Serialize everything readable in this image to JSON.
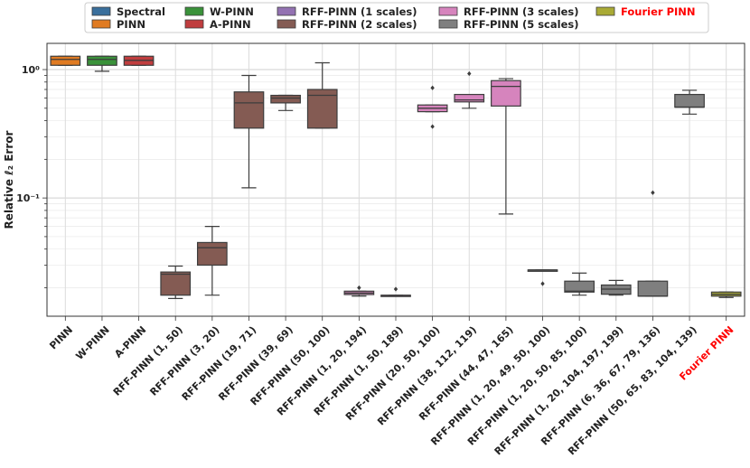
{
  "chart_data": {
    "type": "box",
    "title": "",
    "xlabel": "",
    "ylabel": "Relative ℓ₂ Error",
    "yscale": "log",
    "ylim": [
      0.012,
      1.6
    ],
    "y_ticks": [
      {
        "value": 1.0,
        "label": "10⁰"
      },
      {
        "value": 0.1,
        "label": "10⁻¹"
      }
    ],
    "grid": true,
    "legend_position": "top-center",
    "legend": [
      {
        "label": "Spectral",
        "color": "#3a6f9c"
      },
      {
        "label": "PINN",
        "color": "#e07b22"
      },
      {
        "label": "W-PINN",
        "color": "#3a923a"
      },
      {
        "label": "A-PINN",
        "color": "#c03d3e"
      },
      {
        "label": "RFF-PINN (1 scales)",
        "color": "#9372b2"
      },
      {
        "label": "RFF-PINN (2 scales)",
        "color": "#845b53"
      },
      {
        "label": "RFF-PINN (3 scales)",
        "color": "#d684bd"
      },
      {
        "label": "RFF-PINN (5 scales)",
        "color": "#7f7f7f"
      },
      {
        "label": "Fourier PINN",
        "color": "#a9aa35",
        "highlight": "#ff0000"
      }
    ],
    "boxes": [
      {
        "category": "PINN",
        "group": "PINN",
        "whislo": 1.08,
        "q1": 1.08,
        "med": 1.2,
        "q3": 1.27,
        "whishi": 1.27,
        "fliers": []
      },
      {
        "category": "W-PINN",
        "group": "W-PINN",
        "whislo": 0.97,
        "q1": 1.08,
        "med": 1.2,
        "q3": 1.27,
        "whishi": 1.27,
        "fliers": []
      },
      {
        "category": "A-PINN",
        "group": "A-PINN",
        "whislo": 1.08,
        "q1": 1.08,
        "med": 1.18,
        "q3": 1.27,
        "whishi": 1.27,
        "fliers": []
      },
      {
        "category": "RFF-PINN (1, 50)",
        "group": "RFF-PINN (2 scales)",
        "whislo": 0.0165,
        "q1": 0.0175,
        "med": 0.0255,
        "q3": 0.0265,
        "whishi": 0.0295,
        "fliers": []
      },
      {
        "category": "RFF-PINN (3, 20)",
        "group": "RFF-PINN (2 scales)",
        "whislo": 0.0175,
        "q1": 0.03,
        "med": 0.041,
        "q3": 0.045,
        "whishi": 0.06,
        "fliers": []
      },
      {
        "category": "RFF-PINN (19, 71)",
        "group": "RFF-PINN (2 scales)",
        "whislo": 0.12,
        "q1": 0.35,
        "med": 0.55,
        "q3": 0.67,
        "whishi": 0.9,
        "fliers": []
      },
      {
        "category": "RFF-PINN (39, 69)",
        "group": "RFF-PINN (2 scales)",
        "whislo": 0.48,
        "q1": 0.55,
        "med": 0.6,
        "q3": 0.63,
        "whishi": 0.63,
        "fliers": []
      },
      {
        "category": "RFF-PINN (50, 100)",
        "group": "RFF-PINN (2 scales)",
        "whislo": 0.35,
        "q1": 0.35,
        "med": 0.63,
        "q3": 0.7,
        "whishi": 1.13,
        "fliers": []
      },
      {
        "category": "RFF-PINN (1, 20, 194)",
        "group": "RFF-PINN (3 scales)",
        "whislo": 0.0172,
        "q1": 0.0177,
        "med": 0.0182,
        "q3": 0.0188,
        "whishi": 0.0188,
        "fliers": [
          0.02
        ]
      },
      {
        "category": "RFF-PINN (1, 50, 189)",
        "group": "RFF-PINN (3 scales)",
        "whislo": 0.0172,
        "q1": 0.0172,
        "med": 0.0174,
        "q3": 0.0175,
        "whishi": 0.0175,
        "fliers": [
          0.0195
        ]
      },
      {
        "category": "RFF-PINN (20, 50, 100)",
        "group": "RFF-PINN (3 scales)",
        "whislo": 0.47,
        "q1": 0.47,
        "med": 0.5,
        "q3": 0.53,
        "whishi": 0.53,
        "fliers": [
          0.72,
          0.36
        ]
      },
      {
        "category": "RFF-PINN (38, 112, 119)",
        "group": "RFF-PINN (3 scales)",
        "whislo": 0.5,
        "q1": 0.56,
        "med": 0.58,
        "q3": 0.64,
        "whishi": 0.64,
        "fliers": [
          0.93
        ]
      },
      {
        "category": "RFF-PINN (44, 47, 165)",
        "group": "RFF-PINN (3 scales)",
        "whislo": 0.075,
        "q1": 0.52,
        "med": 0.74,
        "q3": 0.82,
        "whishi": 0.85,
        "fliers": []
      },
      {
        "category": "RFF-PINN (1, 20, 49, 50, 100)",
        "group": "RFF-PINN (5 scales)",
        "whislo": 0.0275,
        "q1": 0.0275,
        "med": 0.0275,
        "q3": 0.0275,
        "whishi": 0.0275,
        "fliers": [
          0.0215
        ]
      },
      {
        "category": "RFF-PINN (1, 20, 50, 85, 100)",
        "group": "RFF-PINN (5 scales)",
        "whislo": 0.0175,
        "q1": 0.0185,
        "med": 0.0188,
        "q3": 0.0225,
        "whishi": 0.026,
        "fliers": []
      },
      {
        "category": "RFF-PINN (1, 20, 104, 197, 199)",
        "group": "RFF-PINN (5 scales)",
        "whislo": 0.0175,
        "q1": 0.0178,
        "med": 0.0195,
        "q3": 0.021,
        "whishi": 0.0228,
        "fliers": []
      },
      {
        "category": "RFF-PINN (6, 36, 67, 79, 136)",
        "group": "RFF-PINN (5 scales)",
        "whislo": 0.0172,
        "q1": 0.0172,
        "med": 0.0172,
        "q3": 0.0225,
        "whishi": 0.0225,
        "fliers": [
          0.11
        ]
      },
      {
        "category": "RFF-PINN (50, 65, 83, 104, 139)",
        "group": "RFF-PINN (5 scales)",
        "whislo": 0.45,
        "q1": 0.51,
        "med": 0.51,
        "q3": 0.64,
        "whishi": 0.69,
        "fliers": []
      },
      {
        "category": "Fourier PINN",
        "group": "Fourier PINN",
        "whislo": 0.0168,
        "q1": 0.0172,
        "med": 0.0178,
        "q3": 0.0185,
        "whishi": 0.0185,
        "fliers": [],
        "label_color": "#ff0000"
      }
    ]
  }
}
